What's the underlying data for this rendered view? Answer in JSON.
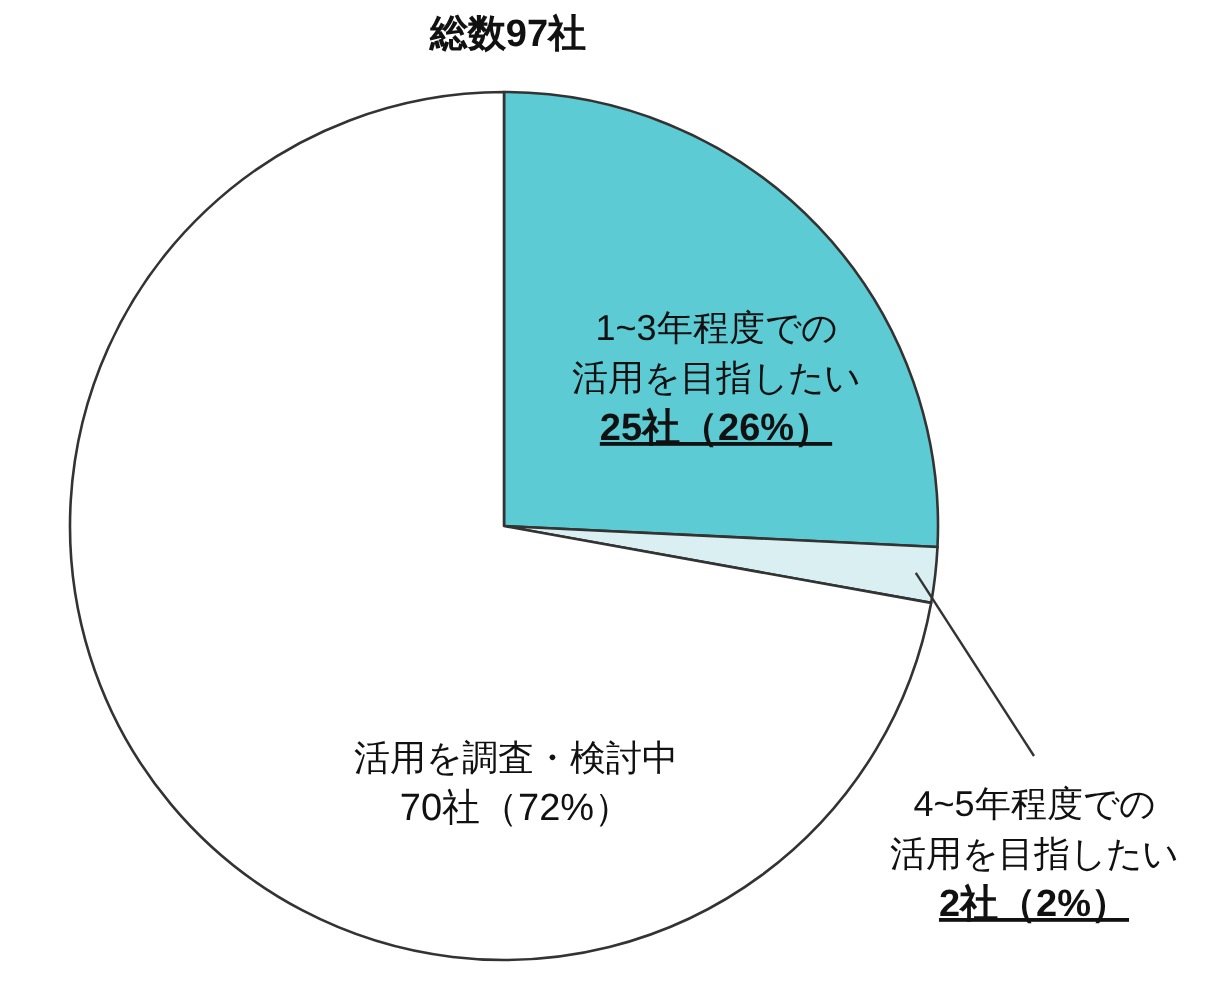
{
  "chart_data": {
    "type": "pie",
    "title": "総数97社",
    "categories": [
      "1~3年程度での活用を目指したい",
      "4~5年程度での活用を目指したい",
      "活用を調査・検討中"
    ],
    "values": [
      25,
      2,
      70
    ],
    "colors": [
      "#5ccbd3",
      "#d9eff2",
      "#ffffff"
    ],
    "value_labels": [
      "25社（26%）",
      "2社（2%）",
      "70社（72%）"
    ]
  }
}
